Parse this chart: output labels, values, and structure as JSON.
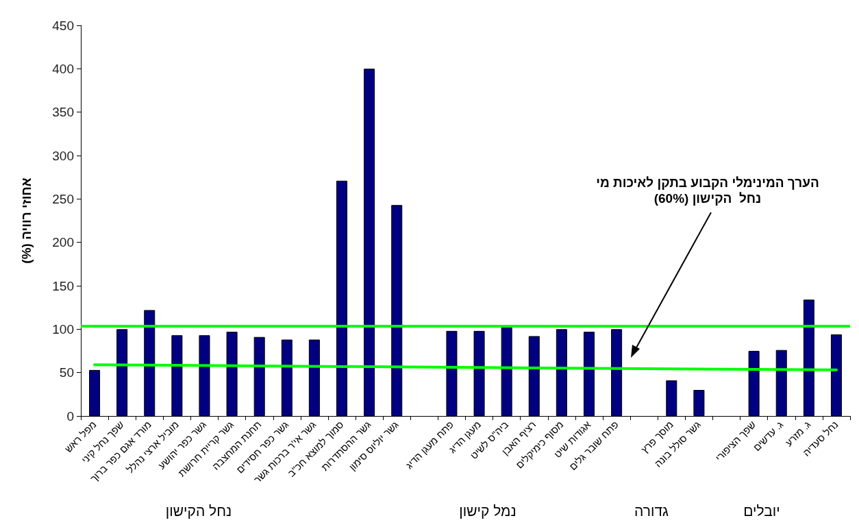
{
  "chart_data": {
    "type": "bar",
    "ylabel": "אחוזי רוויה (%)",
    "categories": [
      "מפל ראש",
      "שפך נחל קיני",
      "מורד אגם כפר ברוך",
      "מוביל ארצי נהלל",
      "גשר כפר יהושע",
      "גשר קריית חרושת",
      "תחנת המחצבה",
      "גשר כפר חסידים",
      "גשר אי'ר ברכות גשר",
      "סמוך למוצא חכ\"ב",
      "גשר ההסתדרות",
      "גשר יוליוס סימון",
      null,
      "פתח מעגן הדיג",
      "מעגן הדיג",
      "ביה\"ס לשיט",
      "רציף האבן",
      "מסוף כימיקלים",
      "אגודות שיט",
      "פתח שובר גלים",
      null,
      "מוסך פרץ",
      "גשר סולל בונה",
      null,
      "שפך הציפורי",
      "ג. עדשים",
      "ג. מזרע",
      "נחל סעדיה"
    ],
    "series": [
      {
        "type": "bar",
        "color": "#000080",
        "values": [
          53,
          100,
          122,
          93,
          93,
          97,
          91,
          88,
          88,
          271,
          400,
          243,
          null,
          98,
          98,
          103,
          92,
          100,
          97,
          100,
          null,
          41,
          30,
          null,
          75,
          76,
          134,
          94
        ]
      },
      {
        "type": "line",
        "color": "#00ff00",
        "marker": "none",
        "line_style": "solid",
        "x": [
          "מפל ראש",
          "נחל סעדיה"
        ],
        "values": [
          59,
          53
        ]
      }
    ],
    "ylim": [
      0,
      450
    ],
    "yticks": [
      0,
      50,
      100,
      150,
      200,
      250,
      300,
      350,
      400,
      450
    ],
    "ref_lines": [
      {
        "axis": "y",
        "value": 104,
        "color": "#00ff00",
        "line_style": "solid"
      }
    ],
    "annotations": [
      "נחל הקישון",
      "נמל קישון",
      "גדורה",
      "יובלים",
      "הערך המינימלי הקבוע בתקן לאיכות מי נחל  הקישון (60%)"
    ]
  }
}
